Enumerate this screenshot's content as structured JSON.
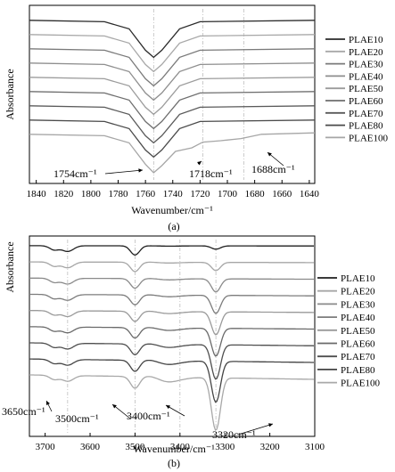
{
  "chart_data": [
    {
      "panel": "(a)",
      "type": "line",
      "ylabel": "Absorbance",
      "xlabel": "Wavenumber/cm⁻¹",
      "xlim": [
        1845,
        1636
      ],
      "x_ticks": [
        1840,
        1820,
        1800,
        1780,
        1760,
        1740,
        1720,
        1700,
        1680,
        1660,
        1640
      ],
      "legend_position": "right",
      "grid": false,
      "reference_lines": [
        1754,
        1718,
        1688
      ],
      "annotations": [
        {
          "text": "1754cm⁻¹",
          "x": 1754
        },
        {
          "text": "1718cm⁻¹",
          "x": 1718
        },
        {
          "text": "1688cm⁻¹",
          "x": 1688
        }
      ],
      "series": [
        {
          "name": "PLAE10",
          "color": "#2a2a2a",
          "baseline": 8.55,
          "points": [
            [
              1845,
              0
            ],
            [
              1790,
              -0.1
            ],
            [
              1772,
              -0.6
            ],
            [
              1760,
              -2.1
            ],
            [
              1754,
              -2.6
            ],
            [
              1748,
              -2.1
            ],
            [
              1735,
              -0.6
            ],
            [
              1720,
              -0.1
            ],
            [
              1636,
              0
            ]
          ]
        },
        {
          "name": "PLAE20",
          "color": "#a8a8a8",
          "baseline": 7.55,
          "points": [
            [
              1845,
              0
            ],
            [
              1790,
              -0.1
            ],
            [
              1772,
              -0.6
            ],
            [
              1760,
              -2.1
            ],
            [
              1754,
              -2.6
            ],
            [
              1748,
              -2.1
            ],
            [
              1735,
              -0.6
            ],
            [
              1720,
              -0.1
            ],
            [
              1636,
              0
            ]
          ]
        },
        {
          "name": "PLAE30",
          "color": "#7a7a7a",
          "baseline": 6.55,
          "points": [
            [
              1845,
              0
            ],
            [
              1790,
              -0.1
            ],
            [
              1772,
              -0.6
            ],
            [
              1760,
              -2.1
            ],
            [
              1754,
              -2.6
            ],
            [
              1748,
              -2.1
            ],
            [
              1735,
              -0.6
            ],
            [
              1720,
              -0.1
            ],
            [
              1636,
              0
            ]
          ]
        },
        {
          "name": "PLAE40",
          "color": "#8e8e8e",
          "baseline": 5.55,
          "points": [
            [
              1845,
              0
            ],
            [
              1790,
              -0.1
            ],
            [
              1772,
              -0.6
            ],
            [
              1760,
              -2.1
            ],
            [
              1754,
              -2.6
            ],
            [
              1748,
              -2.1
            ],
            [
              1735,
              -0.6
            ],
            [
              1720,
              -0.1
            ],
            [
              1636,
              0
            ]
          ]
        },
        {
          "name": "PLAE50",
          "color": "#9c9c9c",
          "baseline": 4.55,
          "points": [
            [
              1845,
              0
            ],
            [
              1790,
              -0.1
            ],
            [
              1772,
              -0.6
            ],
            [
              1760,
              -2.1
            ],
            [
              1754,
              -2.6
            ],
            [
              1748,
              -2.1
            ],
            [
              1735,
              -0.6
            ],
            [
              1720,
              -0.1
            ],
            [
              1636,
              0
            ]
          ]
        },
        {
          "name": "PLAE60",
          "color": "#6e6e6e",
          "baseline": 3.55,
          "points": [
            [
              1845,
              0
            ],
            [
              1790,
              -0.1
            ],
            [
              1772,
              -0.6
            ],
            [
              1760,
              -2.1
            ],
            [
              1754,
              -2.6
            ],
            [
              1748,
              -2.1
            ],
            [
              1735,
              -0.6
            ],
            [
              1720,
              -0.1
            ],
            [
              1636,
              0
            ]
          ]
        },
        {
          "name": "PLAE70",
          "color": "#5a5a5a",
          "baseline": 2.55,
          "points": [
            [
              1845,
              0
            ],
            [
              1790,
              -0.1
            ],
            [
              1772,
              -0.6
            ],
            [
              1760,
              -2.1
            ],
            [
              1754,
              -2.6
            ],
            [
              1748,
              -2.1
            ],
            [
              1735,
              -0.6
            ],
            [
              1720,
              -0.1
            ],
            [
              1636,
              0
            ]
          ]
        },
        {
          "name": "PLAE80",
          "color": "#4a4a4a",
          "baseline": 1.55,
          "points": [
            [
              1845,
              0
            ],
            [
              1790,
              -0.1
            ],
            [
              1772,
              -0.6
            ],
            [
              1760,
              -2.1
            ],
            [
              1754,
              -2.6
            ],
            [
              1748,
              -2.1
            ],
            [
              1735,
              -0.6
            ],
            [
              1720,
              -0.1
            ],
            [
              1636,
              0
            ]
          ]
        },
        {
          "name": "PLAE100",
          "color": "#a6a6a6",
          "baseline": 0.55,
          "points": [
            [
              1845,
              0
            ],
            [
              1790,
              -0.1
            ],
            [
              1772,
              -0.6
            ],
            [
              1760,
              -2.1
            ],
            [
              1754,
              -2.7
            ],
            [
              1748,
              -2.2
            ],
            [
              1738,
              -1.2
            ],
            [
              1726,
              -0.95
            ],
            [
              1718,
              -0.55
            ],
            [
              1705,
              -0.45
            ],
            [
              1690,
              -0.3
            ],
            [
              1675,
              0
            ],
            [
              1636,
              0.1
            ]
          ]
        }
      ]
    },
    {
      "panel": "(b)",
      "type": "line",
      "ylabel": "Absorbance",
      "xlabel": "Wavenumber/cm⁻¹",
      "xlim": [
        3735,
        3100
      ],
      "x_ticks": [
        3700,
        3600,
        3500,
        3400,
        3300,
        3200,
        3100
      ],
      "legend_position": "right",
      "grid": false,
      "reference_lines": [
        3650,
        3500,
        3400,
        3320
      ],
      "annotations": [
        {
          "text": "3650cm⁻¹",
          "x": 3650
        },
        {
          "text": "3500cm⁻¹",
          "x": 3500
        },
        {
          "text": "3400cm⁻¹",
          "x": 3400
        },
        {
          "text": "3320cm⁻¹",
          "x": 3320
        }
      ],
      "series": [
        {
          "name": "PLAE10",
          "color": "#1e1e1e",
          "baseline": 8.8,
          "dip": 0.2
        },
        {
          "name": "PLAE20",
          "color": "#a6a6a6",
          "baseline": 7.8,
          "dip": 0.5
        },
        {
          "name": "PLAE30",
          "color": "#8a8a8a",
          "baseline": 6.8,
          "dip": 0.8
        },
        {
          "name": "PLAE40",
          "color": "#7c7c7c",
          "baseline": 5.8,
          "dip": 1.1
        },
        {
          "name": "PLAE50",
          "color": "#9a9a9a",
          "baseline": 4.8,
          "dip": 1.4
        },
        {
          "name": "PLAE60",
          "color": "#6a6a6a",
          "baseline": 3.8,
          "dip": 1.7
        },
        {
          "name": "PLAE70",
          "color": "#4f4f4f",
          "baseline": 2.8,
          "dip": 2.1
        },
        {
          "name": "PLAE80",
          "color": "#444444",
          "baseline": 1.8,
          "dip": 2.5
        },
        {
          "name": "PLAE100",
          "color": "#a8a8a8",
          "baseline": 0.8,
          "dip": 3.2
        }
      ]
    }
  ]
}
